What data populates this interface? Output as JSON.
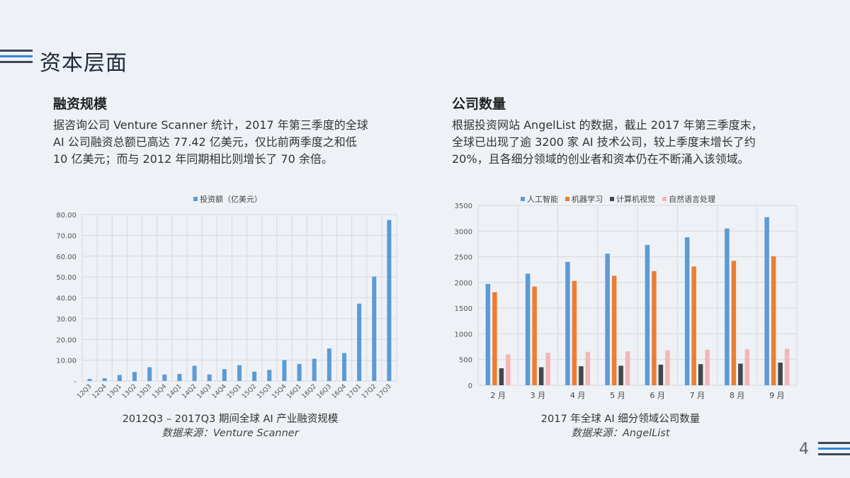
{
  "page": {
    "title": "资本层面",
    "page_number": "4",
    "colors": {
      "dark": "#3b4654",
      "accent": "#4f8fd0",
      "light_blue": "#2e86de"
    }
  },
  "left": {
    "heading": "融资规模",
    "lines": [
      "据咨询公司 Venture Scanner 统计，2017 年第三季度的全球",
      "AI 公司融资总额已高达 77.42 亿美元，仅比前两季度之和低",
      "10 亿美元；而与 2012 年同期相比则增长了 70 余倍。"
    ],
    "caption": "2012Q3 – 2017Q3 期间全球 AI 产业融资规模",
    "source": "数据来源：Venture Scanner"
  },
  "right": {
    "heading": "公司数量",
    "lines": [
      "根据投资网站 AngelList 的数据，截止 2017 年第三季度末，",
      "全球已出现了逾 3200 家 AI 技术公司，较上季度末增长了约",
      "20%，且各细分领域的创业者和资本仍在不断涌入该领域。"
    ],
    "caption": "2017 年全球 AI 细分领域公司数量",
    "source": "数据来源：AngelList"
  },
  "chart_data": [
    {
      "type": "bar",
      "legend_position": "top",
      "grid": true,
      "ylim": [
        0,
        80
      ],
      "yticks": [
        "-",
        "10.00",
        "20.00",
        "30.00",
        "40.00",
        "50.00",
        "60.00",
        "70.00",
        "80.00"
      ],
      "categories": [
        "12Q3",
        "12Q4",
        "13Q1",
        "13Q2",
        "13Q3",
        "13Q4",
        "14Q1",
        "14Q2",
        "14Q3",
        "14Q4",
        "15Q1",
        "15Q2",
        "15Q3",
        "15Q4",
        "16Q1",
        "16Q2",
        "16Q3",
        "16Q4",
        "17Q1",
        "17Q2",
        "17Q3"
      ],
      "series": [
        {
          "name": "投资额（亿美元）",
          "color": "#5b9bd5",
          "values": [
            1.0,
            1.3,
            2.9,
            4.3,
            6.6,
            3.1,
            3.4,
            7.3,
            3.1,
            5.7,
            7.6,
            4.5,
            5.3,
            10.1,
            8.2,
            10.7,
            15.6,
            13.4,
            37.2,
            50.2,
            77.42
          ]
        }
      ]
    },
    {
      "type": "bar",
      "legend_position": "top",
      "grid": true,
      "ylim": [
        0,
        3500
      ],
      "yticks": [
        "0",
        "500",
        "1000",
        "1500",
        "2000",
        "2500",
        "3000",
        "3500"
      ],
      "categories": [
        "2 月",
        "3 月",
        "4 月",
        "5 月",
        "6 月",
        "7 月",
        "8 月",
        "9 月"
      ],
      "series": [
        {
          "name": "人工智能",
          "color": "#5b9bd5",
          "values": [
            1970,
            2170,
            2400,
            2560,
            2730,
            2880,
            3050,
            3270
          ]
        },
        {
          "name": "机器学习",
          "color": "#ed7d31",
          "values": [
            1810,
            1920,
            2030,
            2130,
            2220,
            2310,
            2420,
            2510
          ]
        },
        {
          "name": "计算机视觉",
          "color": "#44474c",
          "values": [
            330,
            350,
            370,
            380,
            400,
            410,
            420,
            440
          ]
        },
        {
          "name": "自然语言处理",
          "color": "#f4b6b8",
          "values": [
            600,
            630,
            650,
            660,
            680,
            690,
            700,
            710
          ]
        }
      ]
    }
  ]
}
